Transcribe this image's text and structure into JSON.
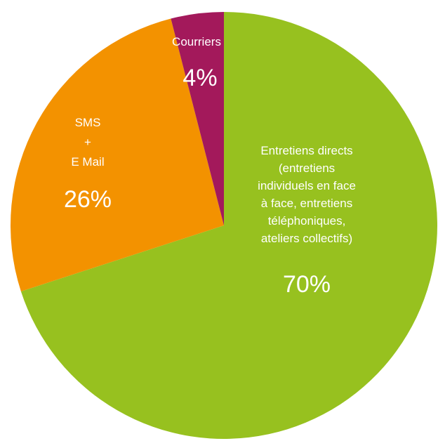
{
  "chart_data": {
    "type": "pie",
    "title": "",
    "slices": [
      {
        "name": "Entretiens directs",
        "label_lines": [
          "Entretiens directs",
          "(entretiens",
          "individuels en face",
          "à face, entretiens",
          "téléphoniques,",
          "ateliers collectifs)"
        ],
        "value": 70,
        "value_label": "70%",
        "color": "#97c11f"
      },
      {
        "name": "SMS + E Mail",
        "label_lines": [
          "SMS",
          "+",
          "E Mail"
        ],
        "value": 26,
        "value_label": "26%",
        "color": "#f39200"
      },
      {
        "name": "Courriers",
        "label_lines": [
          "Courriers"
        ],
        "value": 4,
        "value_label": "4%",
        "color": "#a3195b"
      }
    ]
  }
}
